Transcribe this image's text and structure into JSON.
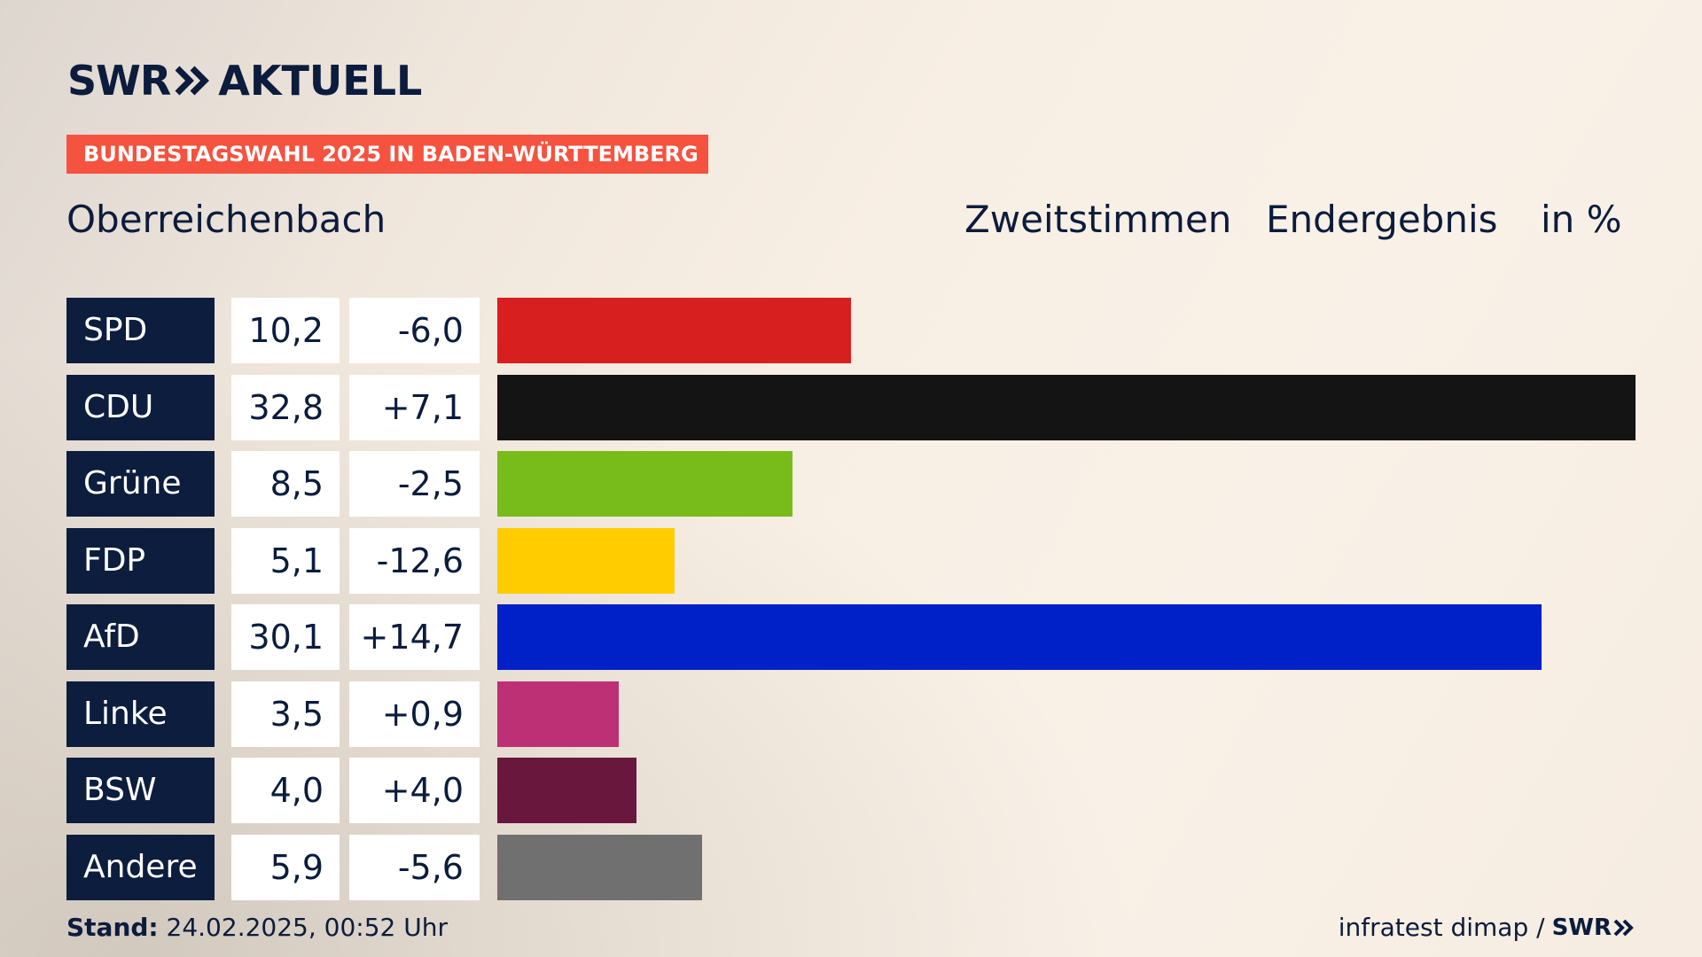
{
  "brand": {
    "logo_text": "SWR",
    "product": "AKTUELL",
    "logo_chevrons": "chevron-double-right-icon"
  },
  "banner": {
    "text": "BUNDESTAGSWAHL 2025 IN BADEN-WÜRTTEMBERG",
    "color": "#f5523f"
  },
  "header": {
    "place": "Oberreichenbach",
    "vote_type": "Zweitstimmen",
    "status": "Endergebnis",
    "unit": "in %"
  },
  "chart_data": {
    "type": "bar",
    "orientation": "horizontal",
    "categories": [
      "SPD",
      "CDU",
      "Grüne",
      "FDP",
      "AfD",
      "Linke",
      "BSW",
      "Andere"
    ],
    "values": [
      10.2,
      32.8,
      8.5,
      5.1,
      30.1,
      3.5,
      4.0,
      5.9
    ],
    "value_labels": [
      "10,2",
      "32,8",
      "8,5",
      "5,1",
      "30,1",
      "3,5",
      "4,0",
      "5,9"
    ],
    "change_labels": [
      "-6,0",
      "+7,1",
      "-2,5",
      "-12,6",
      "+14,7",
      "+0,9",
      "+4,0",
      "-5,6"
    ],
    "changes": [
      -6.0,
      7.1,
      -2.5,
      -12.6,
      14.7,
      0.9,
      4.0,
      -5.6
    ],
    "colors": [
      "#d71f20",
      "#141414",
      "#78bc1b",
      "#ffcc00",
      "#0021c8",
      "#bd3075",
      "#6a173e",
      "#707070"
    ],
    "xlim": [
      0,
      32.8
    ]
  },
  "footer": {
    "stand_label": "Stand:",
    "stand_value": "24.02.2025, 00:52 Uhr",
    "source": "infratest dimap /",
    "source_brand": "SWR"
  }
}
